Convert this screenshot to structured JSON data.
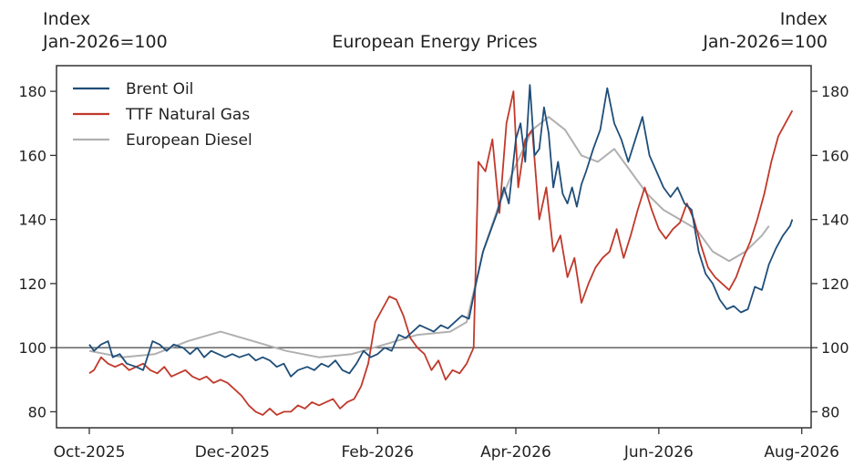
{
  "chart_data": {
    "type": "line",
    "title": "European Energy Prices",
    "left_axis_label": [
      "Index",
      "Jan-2026=100"
    ],
    "right_axis_label": [
      "Index",
      "Jan-2026=100"
    ],
    "x_ticks": [
      {
        "date": "2025-10-01",
        "label": "Oct-2025"
      },
      {
        "date": "2025-12-01",
        "label": "Dec-2025"
      },
      {
        "date": "2026-02-01",
        "label": "Feb-2026"
      },
      {
        "date": "2026-04-01",
        "label": "Apr-2026"
      },
      {
        "date": "2026-06-01",
        "label": "Jun-2026"
      },
      {
        "date": "2026-08-01",
        "label": "Aug-2026"
      }
    ],
    "xlim": [
      "2025-09-17",
      "2026-08-05"
    ],
    "ylim": [
      75,
      188
    ],
    "y_ticks": [
      80,
      100,
      120,
      140,
      160,
      180
    ],
    "reference_line": 100,
    "legend_position": "top-left",
    "grid": false,
    "series": [
      {
        "name": "Brent Oil",
        "color": "#1f4e79",
        "points": [
          [
            "2025-10-01",
            101
          ],
          [
            "2025-10-03",
            99
          ],
          [
            "2025-10-06",
            101
          ],
          [
            "2025-10-09",
            102
          ],
          [
            "2025-10-11",
            97
          ],
          [
            "2025-10-14",
            98
          ],
          [
            "2025-10-17",
            95
          ],
          [
            "2025-10-21",
            94
          ],
          [
            "2025-10-24",
            93
          ],
          [
            "2025-10-28",
            102
          ],
          [
            "2025-10-31",
            101
          ],
          [
            "2025-11-03",
            99
          ],
          [
            "2025-11-06",
            101
          ],
          [
            "2025-11-10",
            100
          ],
          [
            "2025-11-13",
            98
          ],
          [
            "2025-11-16",
            100
          ],
          [
            "2025-11-19",
            97
          ],
          [
            "2025-11-22",
            99
          ],
          [
            "2025-11-25",
            98
          ],
          [
            "2025-11-28",
            97
          ],
          [
            "2025-12-01",
            98
          ],
          [
            "2025-12-04",
            97
          ],
          [
            "2025-12-08",
            98
          ],
          [
            "2025-12-11",
            96
          ],
          [
            "2025-12-14",
            97
          ],
          [
            "2025-12-17",
            96
          ],
          [
            "2025-12-20",
            94
          ],
          [
            "2025-12-23",
            95
          ],
          [
            "2025-12-26",
            91
          ],
          [
            "2025-12-29",
            93
          ],
          [
            "2026-01-02",
            94
          ],
          [
            "2026-01-05",
            93
          ],
          [
            "2026-01-08",
            95
          ],
          [
            "2026-01-11",
            94
          ],
          [
            "2026-01-14",
            96
          ],
          [
            "2026-01-17",
            93
          ],
          [
            "2026-01-20",
            92
          ],
          [
            "2026-01-23",
            95
          ],
          [
            "2026-01-26",
            99
          ],
          [
            "2026-01-29",
            97
          ],
          [
            "2026-02-01",
            98
          ],
          [
            "2026-02-04",
            100
          ],
          [
            "2026-02-07",
            99
          ],
          [
            "2026-02-10",
            104
          ],
          [
            "2026-02-13",
            103
          ],
          [
            "2026-02-16",
            105
          ],
          [
            "2026-02-19",
            107
          ],
          [
            "2026-02-22",
            106
          ],
          [
            "2026-02-25",
            105
          ],
          [
            "2026-02-28",
            107
          ],
          [
            "2026-03-03",
            106
          ],
          [
            "2026-03-06",
            108
          ],
          [
            "2026-03-09",
            110
          ],
          [
            "2026-03-12",
            109
          ],
          [
            "2026-03-15",
            120
          ],
          [
            "2026-03-18",
            130
          ],
          [
            "2026-03-21",
            136
          ],
          [
            "2026-03-24",
            142
          ],
          [
            "2026-03-27",
            150
          ],
          [
            "2026-03-29",
            145
          ],
          [
            "2026-04-01",
            165
          ],
          [
            "2026-04-03",
            170
          ],
          [
            "2026-04-05",
            158
          ],
          [
            "2026-04-07",
            182
          ],
          [
            "2026-04-09",
            160
          ],
          [
            "2026-04-11",
            162
          ],
          [
            "2026-04-13",
            175
          ],
          [
            "2026-04-15",
            167
          ],
          [
            "2026-04-17",
            150
          ],
          [
            "2026-04-19",
            158
          ],
          [
            "2026-04-21",
            148
          ],
          [
            "2026-04-23",
            145
          ],
          [
            "2026-04-25",
            150
          ],
          [
            "2026-04-27",
            144
          ],
          [
            "2026-04-29",
            151
          ],
          [
            "2026-05-01",
            155
          ],
          [
            "2026-05-04",
            162
          ],
          [
            "2026-05-07",
            168
          ],
          [
            "2026-05-10",
            181
          ],
          [
            "2026-05-13",
            170
          ],
          [
            "2026-05-16",
            165
          ],
          [
            "2026-05-19",
            158
          ],
          [
            "2026-05-22",
            165
          ],
          [
            "2026-05-25",
            172
          ],
          [
            "2026-05-28",
            160
          ],
          [
            "2026-05-31",
            155
          ],
          [
            "2026-06-03",
            150
          ],
          [
            "2026-06-06",
            147
          ],
          [
            "2026-06-09",
            150
          ],
          [
            "2026-06-12",
            145
          ],
          [
            "2026-06-15",
            143
          ],
          [
            "2026-06-18",
            130
          ],
          [
            "2026-06-21",
            123
          ],
          [
            "2026-06-24",
            120
          ],
          [
            "2026-06-27",
            115
          ],
          [
            "2026-06-30",
            112
          ],
          [
            "2026-07-03",
            113
          ],
          [
            "2026-07-06",
            111
          ],
          [
            "2026-07-09",
            112
          ],
          [
            "2026-07-12",
            119
          ],
          [
            "2026-07-15",
            118
          ],
          [
            "2026-07-18",
            126
          ],
          [
            "2026-07-21",
            131
          ],
          [
            "2026-07-24",
            135
          ],
          [
            "2026-07-27",
            138
          ],
          [
            "2026-07-28",
            140
          ]
        ]
      },
      {
        "name": "TTF Natural Gas",
        "color": "#c0392b",
        "points": [
          [
            "2025-10-01",
            92
          ],
          [
            "2025-10-03",
            93
          ],
          [
            "2025-10-06",
            97
          ],
          [
            "2025-10-09",
            95
          ],
          [
            "2025-10-12",
            94
          ],
          [
            "2025-10-15",
            95
          ],
          [
            "2025-10-18",
            93
          ],
          [
            "2025-10-21",
            94
          ],
          [
            "2025-10-24",
            95
          ],
          [
            "2025-10-27",
            93
          ],
          [
            "2025-10-30",
            92
          ],
          [
            "2025-11-02",
            94
          ],
          [
            "2025-11-05",
            91
          ],
          [
            "2025-11-08",
            92
          ],
          [
            "2025-11-11",
            93
          ],
          [
            "2025-11-14",
            91
          ],
          [
            "2025-11-17",
            90
          ],
          [
            "2025-11-20",
            91
          ],
          [
            "2025-11-23",
            89
          ],
          [
            "2025-11-26",
            90
          ],
          [
            "2025-11-29",
            89
          ],
          [
            "2025-12-02",
            87
          ],
          [
            "2025-12-05",
            85
          ],
          [
            "2025-12-08",
            82
          ],
          [
            "2025-12-11",
            80
          ],
          [
            "2025-12-14",
            79
          ],
          [
            "2025-12-17",
            81
          ],
          [
            "2025-12-20",
            79
          ],
          [
            "2025-12-23",
            80
          ],
          [
            "2025-12-26",
            80
          ],
          [
            "2025-12-29",
            82
          ],
          [
            "2026-01-01",
            81
          ],
          [
            "2026-01-04",
            83
          ],
          [
            "2026-01-07",
            82
          ],
          [
            "2026-01-10",
            83
          ],
          [
            "2026-01-13",
            84
          ],
          [
            "2026-01-16",
            81
          ],
          [
            "2026-01-19",
            83
          ],
          [
            "2026-01-22",
            84
          ],
          [
            "2026-01-25",
            88
          ],
          [
            "2026-01-28",
            95
          ],
          [
            "2026-01-31",
            108
          ],
          [
            "2026-02-03",
            112
          ],
          [
            "2026-02-06",
            116
          ],
          [
            "2026-02-09",
            115
          ],
          [
            "2026-02-12",
            110
          ],
          [
            "2026-02-15",
            103
          ],
          [
            "2026-02-18",
            100
          ],
          [
            "2026-02-21",
            98
          ],
          [
            "2026-02-24",
            93
          ],
          [
            "2026-02-27",
            96
          ],
          [
            "2026-03-02",
            90
          ],
          [
            "2026-03-05",
            93
          ],
          [
            "2026-03-08",
            92
          ],
          [
            "2026-03-11",
            95
          ],
          [
            "2026-03-14",
            100
          ],
          [
            "2026-03-16",
            158
          ],
          [
            "2026-03-19",
            155
          ],
          [
            "2026-03-22",
            165
          ],
          [
            "2026-03-25",
            142
          ],
          [
            "2026-03-28",
            170
          ],
          [
            "2026-03-31",
            180
          ],
          [
            "2026-04-02",
            150
          ],
          [
            "2026-04-05",
            165
          ],
          [
            "2026-04-08",
            168
          ],
          [
            "2026-04-11",
            140
          ],
          [
            "2026-04-14",
            150
          ],
          [
            "2026-04-17",
            130
          ],
          [
            "2026-04-20",
            135
          ],
          [
            "2026-04-23",
            122
          ],
          [
            "2026-04-26",
            128
          ],
          [
            "2026-04-29",
            114
          ],
          [
            "2026-05-02",
            120
          ],
          [
            "2026-05-05",
            125
          ],
          [
            "2026-05-08",
            128
          ],
          [
            "2026-05-11",
            130
          ],
          [
            "2026-05-14",
            137
          ],
          [
            "2026-05-17",
            128
          ],
          [
            "2026-05-20",
            135
          ],
          [
            "2026-05-23",
            143
          ],
          [
            "2026-05-26",
            150
          ],
          [
            "2026-05-29",
            143
          ],
          [
            "2026-06-01",
            137
          ],
          [
            "2026-06-04",
            134
          ],
          [
            "2026-06-07",
            137
          ],
          [
            "2026-06-10",
            139
          ],
          [
            "2026-06-13",
            145
          ],
          [
            "2026-06-16",
            140
          ],
          [
            "2026-06-19",
            132
          ],
          [
            "2026-06-22",
            125
          ],
          [
            "2026-06-25",
            122
          ],
          [
            "2026-06-28",
            120
          ],
          [
            "2026-07-01",
            118
          ],
          [
            "2026-07-04",
            122
          ],
          [
            "2026-07-07",
            128
          ],
          [
            "2026-07-10",
            133
          ],
          [
            "2026-07-13",
            140
          ],
          [
            "2026-07-16",
            148
          ],
          [
            "2026-07-19",
            158
          ],
          [
            "2026-07-22",
            166
          ],
          [
            "2026-07-25",
            170
          ],
          [
            "2026-07-28",
            174
          ]
        ]
      },
      {
        "name": "European Diesel",
        "color": "#b0b0b0",
        "points": [
          [
            "2025-10-01",
            99
          ],
          [
            "2025-10-15",
            97
          ],
          [
            "2025-10-29",
            98
          ],
          [
            "2025-11-12",
            102
          ],
          [
            "2025-11-26",
            105
          ],
          [
            "2025-12-10",
            102
          ],
          [
            "2025-12-24",
            99
          ],
          [
            "2026-01-07",
            97
          ],
          [
            "2026-01-21",
            98
          ],
          [
            "2026-02-04",
            101
          ],
          [
            "2026-02-18",
            104
          ],
          [
            "2026-03-04",
            105
          ],
          [
            "2026-03-11",
            108
          ],
          [
            "2026-03-18",
            130
          ],
          [
            "2026-03-25",
            145
          ],
          [
            "2026-04-01",
            157
          ],
          [
            "2026-04-08",
            168
          ],
          [
            "2026-04-15",
            172
          ],
          [
            "2026-04-22",
            168
          ],
          [
            "2026-04-29",
            160
          ],
          [
            "2026-05-06",
            158
          ],
          [
            "2026-05-13",
            162
          ],
          [
            "2026-05-20",
            155
          ],
          [
            "2026-05-27",
            148
          ],
          [
            "2026-06-03",
            143
          ],
          [
            "2026-06-10",
            140
          ],
          [
            "2026-06-17",
            137
          ],
          [
            "2026-06-24",
            130
          ],
          [
            "2026-07-01",
            127
          ],
          [
            "2026-07-08",
            130
          ],
          [
            "2026-07-15",
            135
          ],
          [
            "2026-07-18",
            138
          ]
        ]
      }
    ]
  }
}
